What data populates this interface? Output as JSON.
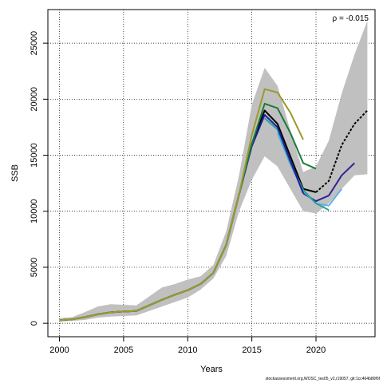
{
  "chart_data": {
    "type": "line",
    "xlabel": "Years",
    "ylabel": "SSB",
    "xlim": [
      1999.1,
      2024.6
    ],
    "ylim": [
      -1200,
      28000
    ],
    "xticks": [
      2000,
      2005,
      2010,
      2015,
      2020
    ],
    "yticks": [
      0,
      5000,
      10000,
      15000,
      20000,
      25000
    ],
    "grid": true,
    "annotation": "ρ = -0.015",
    "credit": "stockassessment.org,WOSC_tes05_v2,r19057, git:1cc464b80f6f",
    "confidence_band": {
      "x": [
        2000,
        2001,
        2002,
        2003,
        2004,
        2005,
        2006,
        2007,
        2008,
        2009,
        2010,
        2011,
        2012,
        2013,
        2014,
        2015,
        2016,
        2017,
        2018,
        2019,
        2020,
        2021,
        2022,
        2023,
        2024
      ],
      "upper": [
        450,
        550,
        1000,
        1500,
        1700,
        1650,
        1600,
        2400,
        3200,
        3500,
        3900,
        4200,
        5200,
        8200,
        13200,
        19500,
        22800,
        21200,
        17200,
        13500,
        14000,
        16300,
        20500,
        24000,
        27000
      ],
      "lower": [
        150,
        200,
        300,
        500,
        600,
        650,
        700,
        1100,
        1500,
        1900,
        2300,
        3000,
        4000,
        6000,
        10000,
        12800,
        14900,
        14000,
        12000,
        10000,
        9800,
        10700,
        12000,
        13200,
        13300
      ]
    },
    "series": [
      {
        "color": "#000000",
        "dashed": false,
        "x": [
          2000,
          2001,
          2002,
          2003,
          2004,
          2005,
          2006,
          2007,
          2008,
          2009,
          2010,
          2011,
          2012,
          2013,
          2014,
          2015,
          2016,
          2017,
          2018,
          2019,
          2020
        ],
        "values": [
          280,
          350,
          550,
          800,
          980,
          1050,
          1100,
          1600,
          2100,
          2550,
          2950,
          3500,
          4500,
          7000,
          11500,
          16000,
          19000,
          17800,
          14900,
          12000,
          11700
        ]
      },
      {
        "color": "#000000",
        "dashed": true,
        "x": [
          2020,
          2021,
          2022,
          2023,
          2024
        ],
        "values": [
          11700,
          12700,
          15900,
          17800,
          19000
        ]
      },
      {
        "color": "#2e2590",
        "dashed": false,
        "x": [
          2019,
          2020,
          2021,
          2022,
          2023
        ],
        "values": [
          11600,
          10900,
          11400,
          13200,
          14300
        ]
      },
      {
        "color": "#5ab4e5",
        "dashed": false,
        "x": [
          2017,
          2018,
          2019,
          2020,
          2021,
          2022
        ],
        "values": [
          17000,
          14200,
          11800,
          10700,
          10500,
          12000
        ]
      },
      {
        "color": "#2aa198",
        "dashed": false,
        "x": [
          2016,
          2017,
          2018,
          2019,
          2020,
          2021
        ],
        "values": [
          18300,
          17300,
          14300,
          11900,
          10700,
          10100
        ]
      },
      {
        "color": "#1f1fa0",
        "dashed": false,
        "x": [
          2000,
          2001,
          2002,
          2003,
          2004,
          2005,
          2006,
          2007,
          2008,
          2009,
          2010,
          2011,
          2012,
          2013,
          2014,
          2015,
          2016,
          2017,
          2018,
          2019
        ],
        "values": [
          280,
          350,
          550,
          800,
          980,
          1050,
          1100,
          1600,
          2100,
          2550,
          2950,
          3500,
          4500,
          7000,
          11500,
          15800,
          18600,
          17500,
          14500,
          11600
        ]
      },
      {
        "color": "#1a7a3a",
        "dashed": false,
        "x": [
          2000,
          2001,
          2002,
          2003,
          2004,
          2005,
          2006,
          2007,
          2008,
          2009,
          2010,
          2011,
          2012,
          2013,
          2014,
          2015,
          2016,
          2017,
          2018,
          2019,
          2020
        ],
        "values": [
          280,
          350,
          550,
          800,
          980,
          1050,
          1100,
          1600,
          2100,
          2550,
          2950,
          3500,
          4500,
          7000,
          11500,
          16000,
          19600,
          19200,
          17000,
          14300,
          13800
        ]
      },
      {
        "color": "#9a9a2a",
        "dashed": false,
        "x": [
          2000,
          2001,
          2002,
          2003,
          2004,
          2005,
          2006,
          2007,
          2008,
          2009,
          2010,
          2011,
          2012,
          2013,
          2014,
          2015,
          2016,
          2017,
          2018,
          2019
        ],
        "values": [
          280,
          350,
          550,
          800,
          980,
          1050,
          1100,
          1600,
          2100,
          2550,
          2950,
          3500,
          4500,
          7000,
          11500,
          16800,
          20900,
          20600,
          18800,
          16400
        ]
      }
    ]
  }
}
